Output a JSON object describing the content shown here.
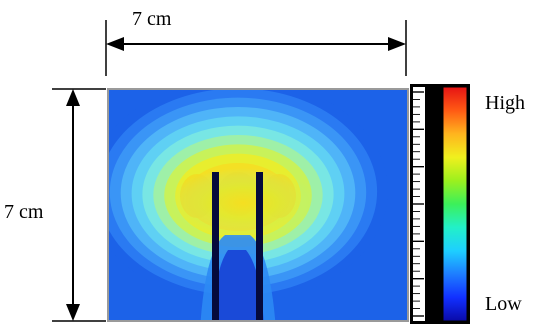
{
  "figure": {
    "width_label": "7 cm",
    "height_label": "7 cm"
  },
  "colorbar": {
    "high_label": "High",
    "low_label": "Low",
    "colors": [
      "#0a0aa8",
      "#1230ff",
      "#1e7dff",
      "#1ecfff",
      "#22f0c8",
      "#3cf05a",
      "#9cf01e",
      "#f0f01e",
      "#ffb41e",
      "#ff5a14",
      "#e61414"
    ]
  },
  "field": {
    "background_color": "#1c62e8",
    "contour_colors": [
      "#1c62e8",
      "#2a7af2",
      "#3a95f6",
      "#4fb4f8",
      "#5fd0f4",
      "#78e6e4",
      "#9ef0a8",
      "#c8f25a",
      "#e8ee2e",
      "#f4e024"
    ]
  }
}
